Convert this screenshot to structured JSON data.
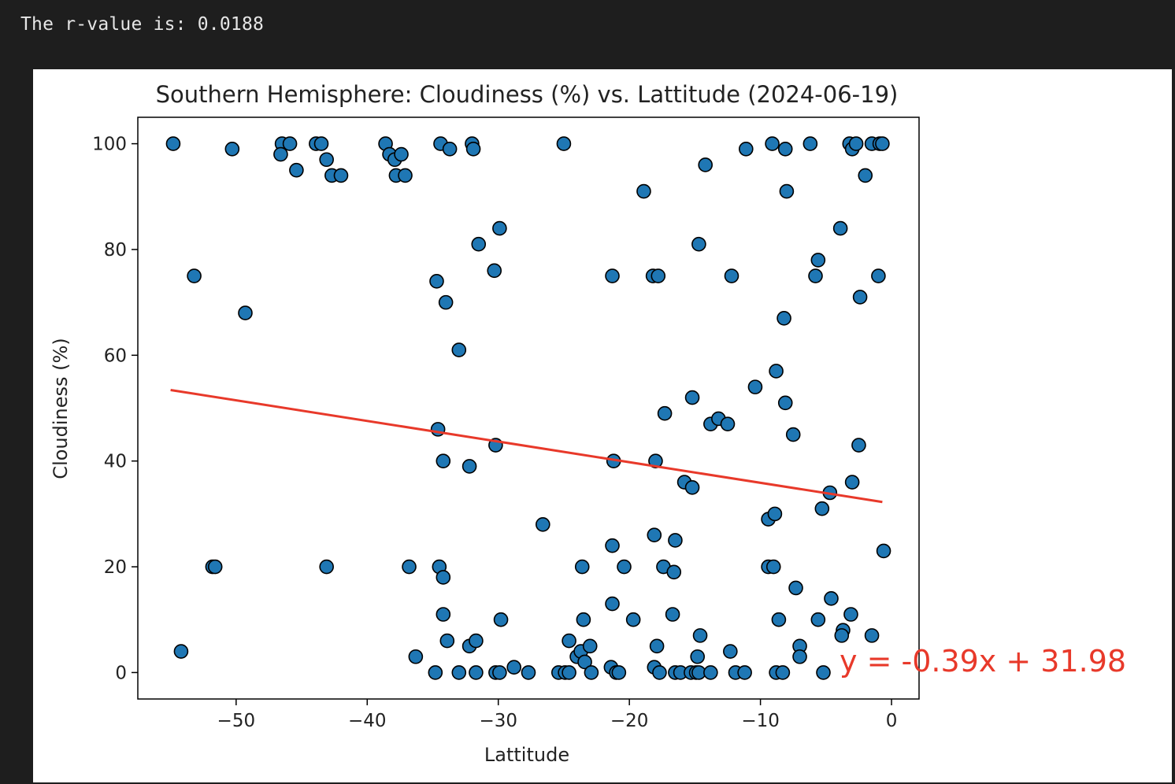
{
  "output": {
    "text": "The r-value is: 0.0188"
  },
  "chart_data": {
    "type": "scatter",
    "title": "Southern Hemisphere: Cloudiness (%) vs. Lattitude (2024-06-19)",
    "xlabel": "Lattitude",
    "ylabel": "Cloudiness (%)",
    "xlim": [
      -57.5,
      2.1
    ],
    "ylim": [
      -5,
      105
    ],
    "xticks": [
      -50,
      -40,
      -30,
      -20,
      -10,
      0
    ],
    "xtick_labels": [
      "−50",
      "−40",
      "−30",
      "−20",
      "−10",
      "0"
    ],
    "yticks": [
      0,
      20,
      40,
      60,
      80,
      100
    ],
    "ytick_labels": [
      "0",
      "20",
      "40",
      "60",
      "80",
      "100"
    ],
    "grid": false,
    "marker_color": "#1f77b4",
    "marker_edge": "#000000",
    "line_color": "#e8392a",
    "regression": {
      "slope": -0.39,
      "intercept": 31.98,
      "x_range": [
        -55.0,
        -0.7
      ],
      "label": "y = -0.39x + 31.98"
    },
    "points": [
      [
        -54.8,
        100
      ],
      [
        -50.3,
        99
      ],
      [
        -46.5,
        100
      ],
      [
        -45.9,
        100
      ],
      [
        -46.6,
        98
      ],
      [
        -45.4,
        95
      ],
      [
        -43.9,
        100
      ],
      [
        -43.5,
        100
      ],
      [
        -43.1,
        97
      ],
      [
        -42.7,
        94
      ],
      [
        -42.0,
        94
      ],
      [
        -38.6,
        100
      ],
      [
        -38.3,
        98
      ],
      [
        -37.9,
        97
      ],
      [
        -37.8,
        94
      ],
      [
        -37.4,
        98
      ],
      [
        -37.1,
        94
      ],
      [
        -34.4,
        100
      ],
      [
        -33.7,
        99
      ],
      [
        -32.0,
        100
      ],
      [
        -31.9,
        99
      ],
      [
        -25.0,
        100
      ],
      [
        -18.9,
        91
      ],
      [
        -14.2,
        96
      ],
      [
        -11.1,
        99
      ],
      [
        -9.1,
        100
      ],
      [
        -8.1,
        99
      ],
      [
        -8.0,
        91
      ],
      [
        -6.2,
        100
      ],
      [
        -3.2,
        100
      ],
      [
        -3.0,
        99
      ],
      [
        -2.7,
        100
      ],
      [
        -2.0,
        94
      ],
      [
        -1.5,
        100
      ],
      [
        -0.9,
        100
      ],
      [
        -0.7,
        100
      ],
      [
        -53.2,
        75
      ],
      [
        -49.3,
        68
      ],
      [
        -31.5,
        81
      ],
      [
        -29.9,
        84
      ],
      [
        -30.3,
        76
      ],
      [
        -34.7,
        74
      ],
      [
        -34.0,
        70
      ],
      [
        -33.0,
        61
      ],
      [
        -21.3,
        75
      ],
      [
        -18.2,
        75
      ],
      [
        -17.8,
        75
      ],
      [
        -14.7,
        81
      ],
      [
        -12.2,
        75
      ],
      [
        -5.6,
        78
      ],
      [
        -5.8,
        75
      ],
      [
        -3.9,
        84
      ],
      [
        -2.4,
        71
      ],
      [
        -1.0,
        75
      ],
      [
        -8.2,
        67
      ],
      [
        -34.6,
        46
      ],
      [
        -34.2,
        40
      ],
      [
        -32.2,
        39
      ],
      [
        -30.2,
        43
      ],
      [
        -21.2,
        40
      ],
      [
        -18.0,
        40
      ],
      [
        -17.3,
        49
      ],
      [
        -15.2,
        52
      ],
      [
        -13.8,
        47
      ],
      [
        -13.2,
        48
      ],
      [
        -12.5,
        47
      ],
      [
        -10.4,
        54
      ],
      [
        -8.8,
        57
      ],
      [
        -8.1,
        51
      ],
      [
        -7.5,
        45
      ],
      [
        -2.5,
        43
      ],
      [
        -3.0,
        36
      ],
      [
        -4.7,
        34
      ],
      [
        -5.3,
        31
      ],
      [
        -9.4,
        29
      ],
      [
        -8.9,
        30
      ],
      [
        -15.8,
        36
      ],
      [
        -15.2,
        35
      ],
      [
        -0.6,
        23
      ],
      [
        -51.8,
        20
      ],
      [
        -51.6,
        20
      ],
      [
        -43.1,
        20
      ],
      [
        -36.8,
        20
      ],
      [
        -34.5,
        20
      ],
      [
        -34.2,
        18
      ],
      [
        -26.6,
        28
      ],
      [
        -23.6,
        20
      ],
      [
        -21.3,
        24
      ],
      [
        -20.4,
        20
      ],
      [
        -18.1,
        26
      ],
      [
        -17.4,
        20
      ],
      [
        -16.6,
        19
      ],
      [
        -16.5,
        25
      ],
      [
        -9.4,
        20
      ],
      [
        -9.0,
        20
      ],
      [
        -7.3,
        16
      ],
      [
        -54.2,
        4
      ],
      [
        -34.2,
        11
      ],
      [
        -29.8,
        10
      ],
      [
        -23.5,
        10
      ],
      [
        -21.3,
        13
      ],
      [
        -19.7,
        10
      ],
      [
        -16.7,
        11
      ],
      [
        -14.6,
        7
      ],
      [
        -12.3,
        4
      ],
      [
        -8.6,
        10
      ],
      [
        -7.0,
        5
      ],
      [
        -7.0,
        3
      ],
      [
        -4.6,
        14
      ],
      [
        -5.6,
        10
      ],
      [
        -3.7,
        8
      ],
      [
        -3.8,
        7
      ],
      [
        -3.1,
        11
      ],
      [
        -1.5,
        7
      ],
      [
        -36.3,
        3
      ],
      [
        -33.9,
        6
      ],
      [
        -32.2,
        5
      ],
      [
        -31.7,
        6
      ],
      [
        -24.6,
        6
      ],
      [
        -24.0,
        3
      ],
      [
        -23.7,
        4
      ],
      [
        -23.4,
        2
      ],
      [
        -23.0,
        5
      ],
      [
        -17.9,
        5
      ],
      [
        -14.8,
        3
      ],
      [
        -34.8,
        0
      ],
      [
        -33.0,
        0
      ],
      [
        -31.7,
        0
      ],
      [
        -30.2,
        0
      ],
      [
        -29.9,
        0
      ],
      [
        -28.8,
        1
      ],
      [
        -27.7,
        0
      ],
      [
        -25.4,
        0
      ],
      [
        -24.9,
        0
      ],
      [
        -24.6,
        0
      ],
      [
        -22.9,
        0
      ],
      [
        -21.4,
        1
      ],
      [
        -21.0,
        0
      ],
      [
        -20.8,
        0
      ],
      [
        -18.1,
        1
      ],
      [
        -17.7,
        0
      ],
      [
        -16.5,
        0
      ],
      [
        -16.1,
        0
      ],
      [
        -15.3,
        0
      ],
      [
        -14.9,
        0
      ],
      [
        -14.7,
        0
      ],
      [
        -13.8,
        0
      ],
      [
        -11.9,
        0
      ],
      [
        -11.2,
        0
      ],
      [
        -8.8,
        0
      ],
      [
        -8.3,
        0
      ],
      [
        -5.2,
        0
      ]
    ]
  }
}
